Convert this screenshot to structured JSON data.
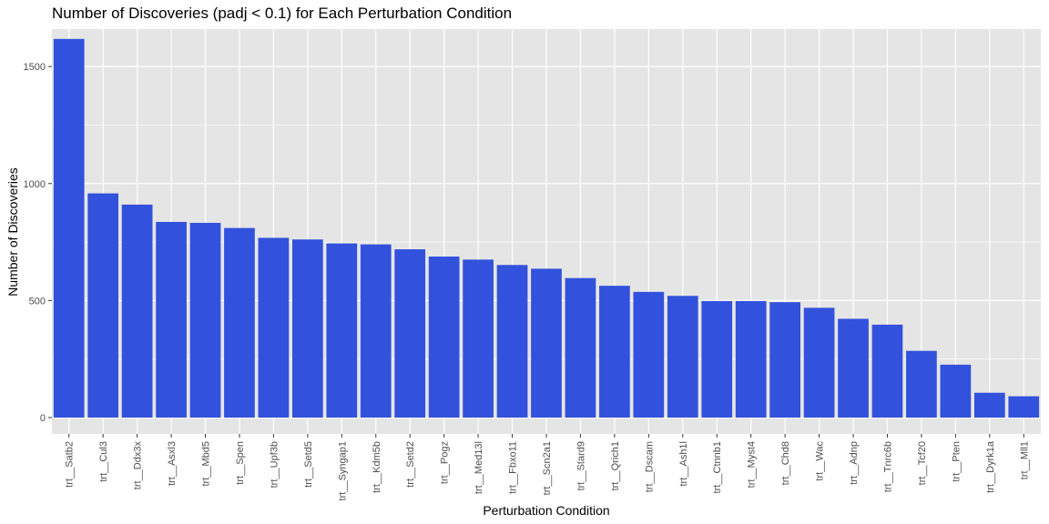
{
  "chart_data": {
    "type": "bar",
    "title": "Number of Discoveries (padj < 0.1) for Each Perturbation Condition",
    "xlabel": "Perturbation Condition",
    "ylabel": "Number of Discoveries",
    "ylim": [
      -70,
      1660
    ],
    "yticks": [
      0,
      500,
      1000,
      1500
    ],
    "grid": true,
    "bar_color": "#3251DC",
    "panel_color": "#E5E5E5",
    "grid_color": "#FFFFFF",
    "categories": [
      "trt__Satb2",
      "trt__Cul3",
      "trt__Ddx3x",
      "trt__Asxl3",
      "trt__Mbd5",
      "trt__Spen",
      "trt__Upf3b",
      "trt__Setd5",
      "trt__Syngap1",
      "trt__Kdm5b",
      "trt__Setd2",
      "trt__Pogz",
      "trt__Med13l",
      "trt__Fbxo11",
      "trt__Scn2a1",
      "trt__Stard9",
      "trt__Qrich1",
      "trt__Dscam",
      "trt__Ash1l",
      "trt__Ctnnb1",
      "trt__Myst4",
      "trt__Chd8",
      "trt__Wac",
      "trt__Adnp",
      "trt__Tnrc6b",
      "trt__Tcf20",
      "trt__Pten",
      "trt__Dyrk1a",
      "trt__Mll1"
    ],
    "values": [
      1618,
      958,
      910,
      836,
      832,
      810,
      768,
      761,
      744,
      740,
      719,
      688,
      675,
      652,
      636,
      596,
      563,
      537,
      520,
      498,
      498,
      493,
      469,
      422,
      397,
      285,
      226,
      106,
      91
    ]
  }
}
